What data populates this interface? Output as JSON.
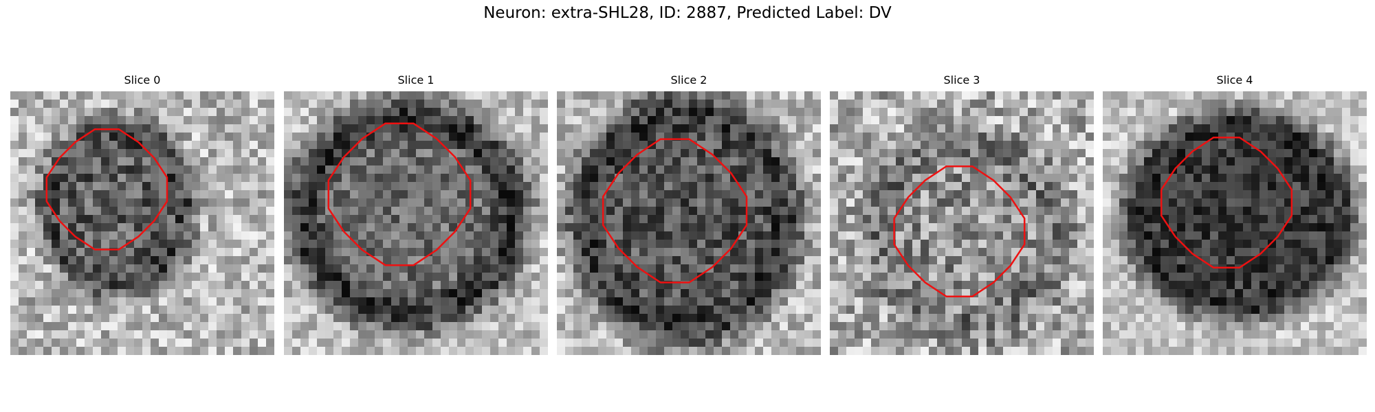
{
  "figure": {
    "title": "Neuron: extra-SHL28, ID: 2887, Predicted Label: DV"
  },
  "panels": [
    {
      "label": "Slice 0",
      "cell_tone": "dark-center",
      "contour": "small-octagon"
    },
    {
      "label": "Slice 1",
      "cell_tone": "medium-center",
      "contour": "large-octagon"
    },
    {
      "label": "Slice 2",
      "cell_tone": "dark-center",
      "contour": "large-octagon"
    },
    {
      "label": "Slice 3",
      "cell_tone": "noisy-light",
      "contour": "medium-octagon"
    },
    {
      "label": "Slice 4",
      "cell_tone": "very-dark",
      "contour": "medium-octagon"
    }
  ],
  "colors": {
    "contour": "#ee1111"
  }
}
